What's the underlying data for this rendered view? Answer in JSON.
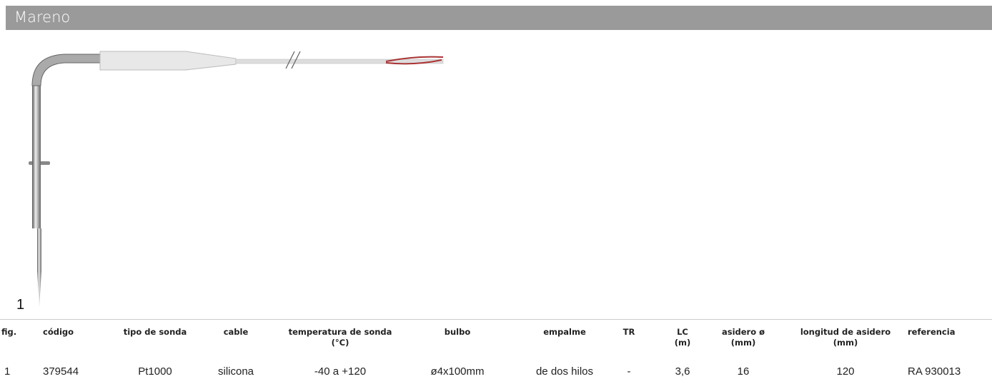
{
  "header": {
    "title": "Mareno"
  },
  "figure": {
    "label": "1"
  },
  "table": {
    "headers": [
      "fig.",
      "código",
      "tipo de sonda",
      "cable",
      "temperatura de sonda (°C)",
      "bulbo",
      "empalme",
      "TR",
      "LC (m)",
      "asidero ø (mm)",
      "longitud de asidero (mm)",
      "referencia"
    ],
    "rows": [
      [
        "1",
        "379544",
        "Pt1000",
        "silicona",
        "-40 a +120",
        "ø4x100mm",
        "de dos hilos",
        "-",
        "3,6",
        "16",
        "120",
        "RA 930013"
      ]
    ]
  }
}
